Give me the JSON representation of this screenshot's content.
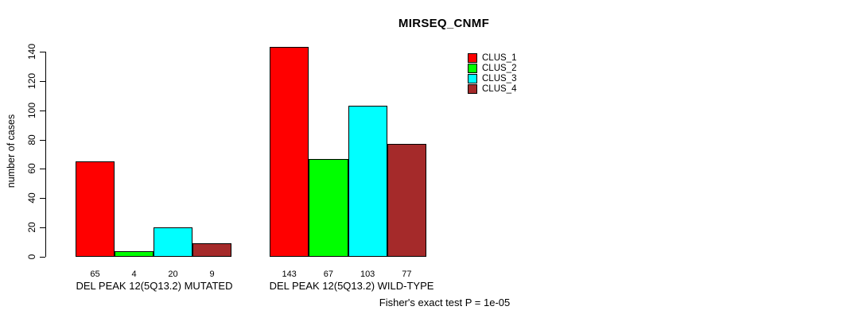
{
  "chart_data": {
    "type": "bar",
    "title": "MIRSEQ_CNMF",
    "xlabel": "",
    "ylabel": "number of cases",
    "ylim": [
      0,
      140
    ],
    "yticks": [
      0,
      20,
      40,
      60,
      80,
      100,
      120,
      140
    ],
    "grid": false,
    "legend_position": "top-right",
    "categories": [
      "DEL PEAK 12(5Q13.2) MUTATED",
      "DEL PEAK 12(5Q13.2) WILD-TYPE"
    ],
    "series": [
      {
        "name": "CLUS_1",
        "color": "#ff0000",
        "values": [
          65,
          143
        ]
      },
      {
        "name": "CLUS_2",
        "color": "#00ff00",
        "values": [
          4,
          67
        ]
      },
      {
        "name": "CLUS_3",
        "color": "#00ffff",
        "values": [
          20,
          103
        ]
      },
      {
        "name": "CLUS_4",
        "color": "#a52a2a",
        "values": [
          9,
          77
        ]
      }
    ],
    "bar_value_labels": [
      [
        65,
        4,
        20,
        9
      ],
      [
        143,
        67,
        103,
        77
      ]
    ],
    "annotation": "Fisher's exact test P = 1e-05"
  },
  "legend": {
    "items": [
      {
        "label": "CLUS_1",
        "color": "#ff0000"
      },
      {
        "label": "CLUS_2",
        "color": "#00ff00"
      },
      {
        "label": "CLUS_3",
        "color": "#00ffff"
      },
      {
        "label": "CLUS_4",
        "color": "#a52a2a"
      }
    ]
  },
  "colors": {
    "foreground": "#000000",
    "background": "#ffffff"
  }
}
